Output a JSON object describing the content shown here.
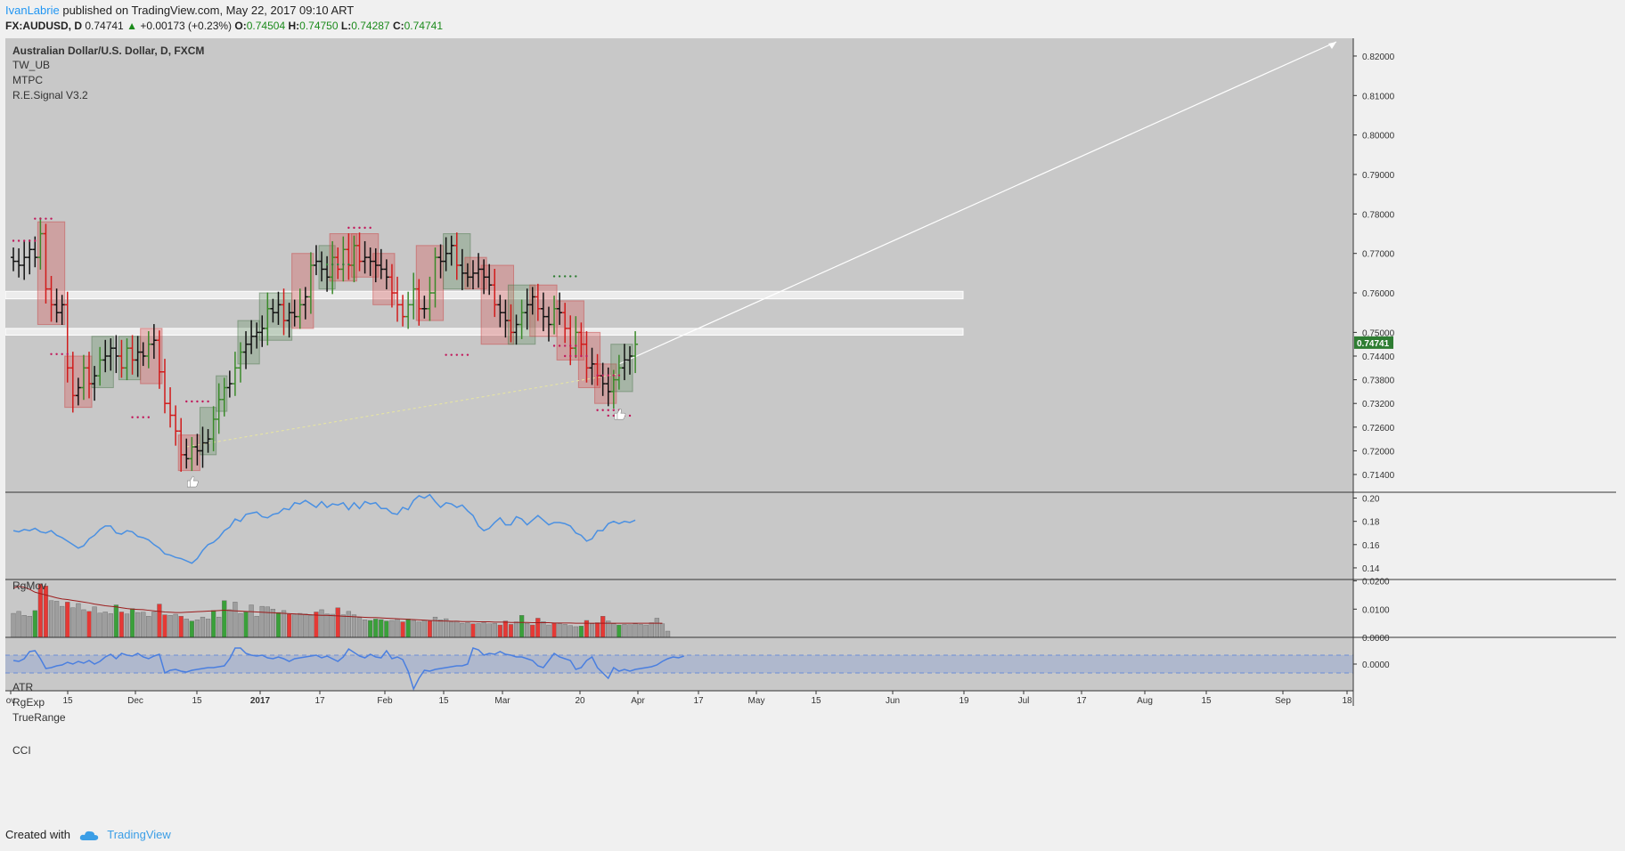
{
  "header": {
    "author": "IvanLabrie",
    "published": "published on TradingView.com, May 22, 2017 09:10 ART",
    "symbol": "FX:AUDUSD, D",
    "last": "0.74741",
    "change": "+0.00173 (+0.23%)",
    "o_label": "O:",
    "o_value": "0.74504",
    "h_label": "H:",
    "h_value": "0.74750",
    "l_label": "L:",
    "l_value": "0.74287",
    "c_label": "C:",
    "c_value": "0.74741"
  },
  "footer": {
    "created_with": "Created with",
    "brand": "TradingView"
  },
  "colors": {
    "background": "#c8c8c8",
    "bull": "#3a8a2a",
    "bear": "#d11b1b",
    "neutral": "#111111",
    "rgmov": "#4a90e2",
    "cci": "#4a7fe0",
    "price_tag": "#2e7d32",
    "atr_line": "#9c1c1c"
  },
  "chart_data": [
    {
      "type": "candlestick",
      "title": "Australian Dollar/U.S. Dollar, D, FXCM",
      "indicator_labels": [
        "TW_UB",
        "MTPC",
        "R.E.Signal V3.2"
      ],
      "ylim": [
        0.7095,
        0.8245
      ],
      "yticks": [
        "0.82000",
        "0.81000",
        "0.80000",
        "0.79000",
        "0.78000",
        "0.77000",
        "0.76000",
        "0.75000",
        "0.74400",
        "0.73800",
        "0.73200",
        "0.72600",
        "0.72000",
        "0.71400"
      ],
      "xticks": [
        "ov",
        "15",
        "Dec",
        "15",
        "2017",
        "17",
        "Feb",
        "15",
        "Mar",
        "20",
        "Apr",
        "17",
        "May",
        "15",
        "Jun",
        "19",
        "Jul",
        "17",
        "Aug",
        "15",
        "Sep",
        "18"
      ],
      "last_price_tag": "0.74741",
      "closes": [
        0.768,
        0.767,
        0.769,
        0.771,
        0.769,
        0.775,
        0.761,
        0.757,
        0.755,
        0.757,
        0.741,
        0.734,
        0.736,
        0.741,
        0.737,
        0.739,
        0.743,
        0.744,
        0.746,
        0.744,
        0.741,
        0.746,
        0.743,
        0.745,
        0.744,
        0.747,
        0.748,
        0.74,
        0.732,
        0.729,
        0.725,
        0.719,
        0.718,
        0.721,
        0.72,
        0.722,
        0.723,
        0.728,
        0.733,
        0.736,
        0.737,
        0.741,
        0.745,
        0.747,
        0.749,
        0.75,
        0.751,
        0.756,
        0.755,
        0.757,
        0.753,
        0.755,
        0.754,
        0.757,
        0.759,
        0.767,
        0.768,
        0.766,
        0.764,
        0.769,
        0.766,
        0.771,
        0.767,
        0.772,
        0.768,
        0.769,
        0.768,
        0.767,
        0.766,
        0.764,
        0.76,
        0.757,
        0.754,
        0.757,
        0.761,
        0.756,
        0.756,
        0.76,
        0.769,
        0.768,
        0.77,
        0.772,
        0.767,
        0.765,
        0.764,
        0.765,
        0.766,
        0.764,
        0.762,
        0.757,
        0.755,
        0.753,
        0.75,
        0.752,
        0.755,
        0.757,
        0.759,
        0.756,
        0.754,
        0.752,
        0.756,
        0.755,
        0.751,
        0.746,
        0.75,
        0.747,
        0.741,
        0.742,
        0.739,
        0.737,
        0.735,
        0.738,
        0.741,
        0.743,
        0.744,
        0.747
      ],
      "support_zones": [
        [
          0.7585,
          0.7604
        ],
        [
          0.7493,
          0.751
        ]
      ],
      "projection_target": 0.8236,
      "signals": [
        {
          "type": "thumbs-up",
          "date": "Dec 23",
          "price": 0.7122
        },
        {
          "type": "thumbs-up",
          "date": "May 12",
          "price": 0.7293
        }
      ]
    },
    {
      "type": "line",
      "title": "RgMov",
      "ylim": [
        0.13,
        0.205
      ],
      "yticks": [
        "0.20",
        "0.18",
        "0.16",
        "0.14"
      ],
      "values": [
        0.172,
        0.171,
        0.173,
        0.172,
        0.174,
        0.171,
        0.17,
        0.172,
        0.168,
        0.166,
        0.163,
        0.16,
        0.157,
        0.159,
        0.165,
        0.168,
        0.173,
        0.176,
        0.176,
        0.17,
        0.169,
        0.172,
        0.171,
        0.167,
        0.166,
        0.164,
        0.16,
        0.157,
        0.152,
        0.151,
        0.149,
        0.148,
        0.146,
        0.144,
        0.148,
        0.155,
        0.16,
        0.162,
        0.166,
        0.172,
        0.175,
        0.182,
        0.18,
        0.186,
        0.187,
        0.188,
        0.184,
        0.183,
        0.186,
        0.187,
        0.191,
        0.19,
        0.196,
        0.195,
        0.198,
        0.195,
        0.192,
        0.197,
        0.192,
        0.195,
        0.194,
        0.196,
        0.19,
        0.196,
        0.191,
        0.197,
        0.195,
        0.196,
        0.191,
        0.191,
        0.187,
        0.186,
        0.192,
        0.19,
        0.198,
        0.202,
        0.2,
        0.203,
        0.197,
        0.192,
        0.196,
        0.195,
        0.192,
        0.194,
        0.189,
        0.185,
        0.176,
        0.172,
        0.174,
        0.179,
        0.183,
        0.177,
        0.177,
        0.184,
        0.182,
        0.177,
        0.181,
        0.185,
        0.181,
        0.177,
        0.179,
        0.179,
        0.178,
        0.176,
        0.17,
        0.168,
        0.163,
        0.165,
        0.172,
        0.172,
        0.178,
        0.18,
        0.178,
        0.18,
        0.179,
        0.181
      ]
    },
    {
      "type": "bar",
      "title": "ATR",
      "series_labels": [
        "ATR",
        "RgExp",
        "TrueRange"
      ],
      "ylim": [
        0,
        0.0205
      ],
      "yticks": [
        "0.0200",
        "0.0100",
        "0.0000"
      ],
      "values": [
        0.0085,
        0.0092,
        0.0078,
        0.0075,
        0.0095,
        0.019,
        0.0182,
        0.013,
        0.0128,
        0.011,
        0.0125,
        0.0105,
        0.012,
        0.0098,
        0.0092,
        0.0108,
        0.0086,
        0.009,
        0.0084,
        0.0115,
        0.009,
        0.0083,
        0.0102,
        0.0088,
        0.0089,
        0.0075,
        0.009,
        0.0118,
        0.008,
        0.0078,
        0.0082,
        0.0075,
        0.0065,
        0.0058,
        0.0062,
        0.0072,
        0.0065,
        0.0095,
        0.0072,
        0.013,
        0.0098,
        0.0125,
        0.0085,
        0.009,
        0.0115,
        0.0075,
        0.011,
        0.0108,
        0.01,
        0.0088,
        0.0095,
        0.0082,
        0.008,
        0.0085,
        0.0083,
        0.0078,
        0.009,
        0.0098,
        0.0083,
        0.0082,
        0.0105,
        0.008,
        0.0092,
        0.008,
        0.007,
        0.0062,
        0.006,
        0.0065,
        0.0063,
        0.0058,
        0.006,
        0.0065,
        0.0055,
        0.0065,
        0.006,
        0.0055,
        0.006,
        0.0058,
        0.0072,
        0.0062,
        0.0066,
        0.0055,
        0.0058,
        0.005,
        0.0052,
        0.0048,
        0.0049,
        0.0052,
        0.0048,
        0.005,
        0.0044,
        0.0058,
        0.0046,
        0.0055,
        0.0078,
        0.005,
        0.0044,
        0.0068,
        0.0056,
        0.0044,
        0.005,
        0.0048,
        0.0046,
        0.0042,
        0.0038,
        0.004,
        0.006,
        0.0048,
        0.0052,
        0.0075,
        0.0058,
        0.0048,
        0.0044,
        0.0046,
        0.0045,
        0.0048,
        0.0046,
        0.0044,
        0.0052,
        0.0068,
        0.0048,
        0.0022
      ],
      "colors_index": {
        "green": [
          4,
          19,
          22,
          33,
          37,
          39,
          43,
          49,
          66,
          67,
          68,
          69,
          73,
          94,
          105,
          112
        ],
        "red": [
          5,
          6,
          10,
          14,
          20,
          27,
          28,
          31,
          51,
          56,
          60,
          72,
          77,
          85,
          90,
          91,
          92,
          96,
          97,
          100,
          106,
          108,
          109
        ]
      },
      "atr_line": [
        0.0175,
        0.018,
        0.0178,
        0.017,
        0.016,
        0.0155,
        0.015,
        0.0145,
        0.014,
        0.0136,
        0.0134,
        0.0131,
        0.0128,
        0.0125,
        0.0122,
        0.0118,
        0.0115,
        0.0112,
        0.011,
        0.0108,
        0.0105,
        0.0102,
        0.01,
        0.0099,
        0.0098,
        0.0096,
        0.0094,
        0.0092,
        0.009,
        0.0089,
        0.0088,
        0.0088,
        0.0089,
        0.009,
        0.0091,
        0.0092,
        0.0093,
        0.0094,
        0.0095,
        0.0096,
        0.0095,
        0.0094,
        0.0093,
        0.0092,
        0.0091,
        0.009,
        0.0089,
        0.0088,
        0.0087,
        0.0086,
        0.0085,
        0.0084,
        0.0083,
        0.0082,
        0.0081,
        0.008,
        0.0079,
        0.0078,
        0.0078,
        0.0077,
        0.0076,
        0.0075,
        0.0074,
        0.0073,
        0.0072,
        0.0071,
        0.007,
        0.007,
        0.0069,
        0.0068,
        0.0067,
        0.0066,
        0.0065,
        0.0064,
        0.0063,
        0.0062,
        0.0061,
        0.006,
        0.0059,
        0.0058,
        0.0058,
        0.0057,
        0.0057,
        0.0056,
        0.0056,
        0.0056,
        0.0055,
        0.0055,
        0.0055,
        0.0054,
        0.0054,
        0.0054,
        0.0053,
        0.0053,
        0.0053,
        0.0053,
        0.0052,
        0.0052,
        0.0052,
        0.0052,
        0.0051,
        0.0051,
        0.0051,
        0.0051,
        0.005,
        0.005,
        0.005,
        0.005,
        0.005,
        0.005,
        0.005,
        0.005,
        0.005,
        0.005,
        0.005,
        0.005,
        0.005,
        0.005,
        0.005,
        0.005,
        0.005
      ]
    },
    {
      "type": "line",
      "title": "CCI",
      "yticks": [
        "0.0000"
      ],
      "zero_label": "0.0000",
      "band": [
        -100,
        100
      ],
      "ylim": [
        -300,
        300
      ],
      "values": [
        40,
        30,
        60,
        140,
        150,
        60,
        -50,
        -40,
        -20,
        -10,
        20,
        0,
        30,
        10,
        40,
        0,
        30,
        80,
        110,
        60,
        120,
        100,
        90,
        120,
        80,
        60,
        90,
        110,
        -100,
        -70,
        -60,
        -80,
        -90,
        -70,
        -60,
        -50,
        -40,
        -40,
        -30,
        -20,
        60,
        180,
        180,
        120,
        100,
        90,
        100,
        70,
        60,
        80,
        60,
        30,
        60,
        70,
        80,
        90,
        100,
        70,
        90,
        60,
        30,
        80,
        170,
        130,
        90,
        70,
        110,
        80,
        70,
        150,
        60,
        80,
        50,
        -80,
        -280,
        -160,
        -70,
        -80,
        -60,
        -50,
        -40,
        -30,
        -20,
        -20,
        0,
        180,
        160,
        100,
        120,
        110,
        140,
        110,
        100,
        80,
        80,
        60,
        40,
        -20,
        -40,
        40,
        120,
        80,
        60,
        40,
        -60,
        -40,
        40,
        80,
        -40,
        -100,
        -160,
        -40,
        -80,
        -60,
        -80,
        -60,
        -50,
        -40,
        -30,
        -10,
        30,
        60,
        80,
        70,
        90
      ]
    }
  ]
}
